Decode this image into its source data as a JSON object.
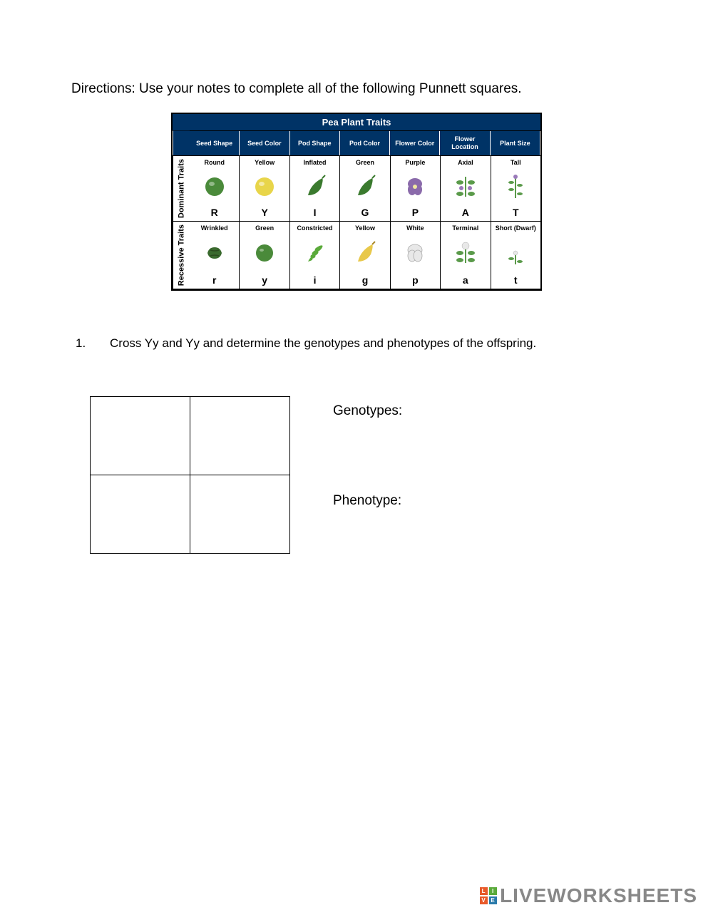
{
  "directions": "Directions: Use your notes to complete all of the following Punnett squares.",
  "table": {
    "title": "Pea Plant Traits",
    "columns": [
      "Seed Shape",
      "Seed Color",
      "Pod Shape",
      "Pod Color",
      "Flower Color",
      "Flower Location",
      "Plant Size"
    ],
    "rows": [
      {
        "label": "Dominant Traits",
        "cells": [
          {
            "name": "Round",
            "allele": "R",
            "icon": "round-seed",
            "color": "#4a8a3a"
          },
          {
            "name": "Yellow",
            "allele": "Y",
            "icon": "yellow-seed",
            "color": "#e8d54a"
          },
          {
            "name": "Inflated",
            "allele": "I",
            "icon": "inflated-pod",
            "color": "#3a7a2e"
          },
          {
            "name": "Green",
            "allele": "G",
            "icon": "green-pod",
            "color": "#3a7a2e"
          },
          {
            "name": "Purple",
            "allele": "P",
            "icon": "purple-flower",
            "color": "#8a6aaa"
          },
          {
            "name": "Axial",
            "allele": "A",
            "icon": "axial-flower",
            "color": "#5a9a4a"
          },
          {
            "name": "Tall",
            "allele": "T",
            "icon": "tall-plant",
            "color": "#5a9a4a"
          }
        ]
      },
      {
        "label": "Recessive Traits",
        "cells": [
          {
            "name": "Wrinkled",
            "allele": "r",
            "icon": "wrinkled-seed",
            "color": "#3a6a2e"
          },
          {
            "name": "Green",
            "allele": "y",
            "icon": "green-seed",
            "color": "#4a8a3a"
          },
          {
            "name": "Constricted",
            "allele": "i",
            "icon": "constricted-pod",
            "color": "#5aaa3a"
          },
          {
            "name": "Yellow",
            "allele": "g",
            "icon": "yellow-pod",
            "color": "#e8c84a"
          },
          {
            "name": "White",
            "allele": "p",
            "icon": "white-flower",
            "color": "#e8e8e8"
          },
          {
            "name": "Terminal",
            "allele": "a",
            "icon": "terminal-flower",
            "color": "#5a9a4a"
          },
          {
            "name": "Short (Dwarf)",
            "allele": "t",
            "icon": "short-plant",
            "color": "#5a9a4a"
          }
        ]
      }
    ]
  },
  "question": {
    "number": "1.",
    "text": "Cross Yy and Yy and determine the genotypes and phenotypes of the offspring."
  },
  "labels": {
    "genotypes": "Genotypes:",
    "phenotype": "Phenotype:"
  },
  "watermark": {
    "text": "LIVEWORKSHEETS",
    "logo_colors": [
      "#e85a2a",
      "#5aaa3a",
      "#e85a2a",
      "#2a7aaa"
    ],
    "logo_letters": [
      "L",
      "I",
      "V",
      "E"
    ]
  },
  "colors": {
    "header_bg": "#003366",
    "header_fg": "#ffffff",
    "border": "#000000",
    "watermark_fg": "#888888"
  }
}
